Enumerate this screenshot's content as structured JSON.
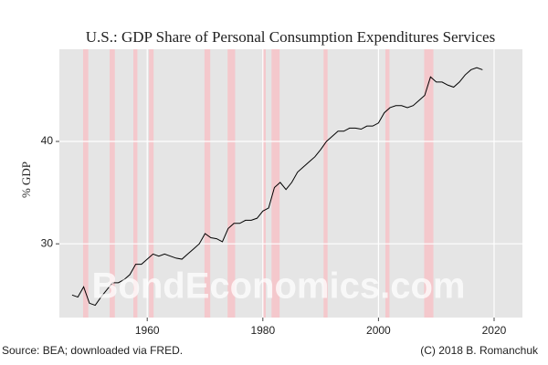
{
  "chart_data": {
    "type": "line",
    "title": "U.S.: GDP Share of Personal Consumption Expenditures Services",
    "y_label": "% GDP",
    "watermark": "BondEconomics.com",
    "source": "Source: BEA; downloaded via FRED.",
    "credit": "(C) 2018 B. Romanchuk",
    "x": [
      1947,
      1948,
      1949,
      1950,
      1951,
      1952,
      1953,
      1954,
      1955,
      1956,
      1957,
      1958,
      1959,
      1960,
      1961,
      1962,
      1963,
      1964,
      1965,
      1966,
      1967,
      1968,
      1969,
      1970,
      1971,
      1972,
      1973,
      1974,
      1975,
      1976,
      1977,
      1978,
      1979,
      1980,
      1981,
      1982,
      1983,
      1984,
      1985,
      1986,
      1987,
      1988,
      1989,
      1990,
      1991,
      1992,
      1993,
      1994,
      1995,
      1996,
      1997,
      1998,
      1999,
      2000,
      2001,
      2002,
      2003,
      2004,
      2005,
      2006,
      2007,
      2008,
      2009,
      2010,
      2011,
      2012,
      2013,
      2014,
      2015,
      2016,
      2017,
      2018
    ],
    "series": [
      {
        "color": "#000000",
        "values": [
          25.0,
          24.8,
          25.8,
          24.2,
          24.0,
          24.8,
          25.5,
          26.2,
          26.2,
          26.5,
          27.0,
          28.0,
          28.0,
          28.5,
          29.0,
          28.8,
          29.0,
          28.8,
          28.6,
          28.5,
          29.0,
          29.5,
          30.0,
          31.0,
          30.6,
          30.5,
          30.2,
          31.5,
          32.0,
          32.0,
          32.3,
          32.3,
          32.5,
          33.2,
          33.5,
          35.5,
          36.0,
          35.3,
          36.0,
          37.0,
          37.5,
          38.0,
          38.5,
          39.2,
          40.0,
          40.5,
          41.0,
          41.0,
          41.3,
          41.3,
          41.2,
          41.5,
          41.5,
          41.8,
          42.8,
          43.3,
          43.5,
          43.5,
          43.3,
          43.5,
          44.0,
          44.5,
          46.3,
          45.8,
          45.8,
          45.5,
          45.3,
          45.8,
          46.5,
          47.0,
          47.2,
          47.0
        ]
      }
    ],
    "shaded_periods": [
      [
        1948.9,
        1949.8
      ],
      [
        1953.5,
        1954.4
      ],
      [
        1957.6,
        1958.3
      ],
      [
        1960.3,
        1961.1
      ],
      [
        1969.9,
        1970.9
      ],
      [
        1973.9,
        1975.2
      ],
      [
        1980.0,
        1980.5
      ],
      [
        1981.5,
        1982.9
      ],
      [
        1990.5,
        1991.2
      ],
      [
        2001.2,
        2001.9
      ],
      [
        2007.9,
        2009.5
      ]
    ],
    "shade_color": "#f4c8cc",
    "xlim": [
      1944.8,
      2024.9
    ],
    "xticks": [
      1960,
      1980,
      2000,
      2020
    ],
    "ylim": [
      22.8,
      49
    ],
    "yticks": [
      30,
      40
    ],
    "grid": true,
    "background": "#e5e5e5"
  }
}
